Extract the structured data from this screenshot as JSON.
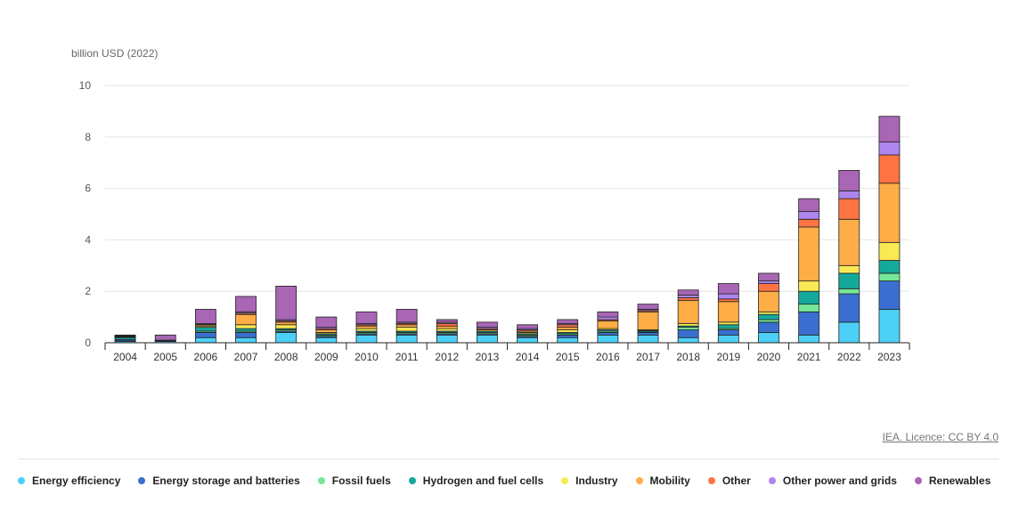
{
  "chart_data": {
    "type": "bar",
    "stacked": true,
    "unit": "billion USD (2022)",
    "ylim": [
      0,
      10
    ],
    "yticks": [
      0,
      2,
      4,
      6,
      8,
      10
    ],
    "grid": true,
    "legend_position": "bottom",
    "credit": "IEA. Licence: CC BY 4.0",
    "categories": [
      "2004",
      "2005",
      "2006",
      "2007",
      "2008",
      "2009",
      "2010",
      "2011",
      "2012",
      "2013",
      "2014",
      "2015",
      "2016",
      "2017",
      "2018",
      "2019",
      "2020",
      "2021",
      "2022",
      "2023"
    ],
    "series": [
      {
        "name": "Energy efficiency",
        "color": "#4dd0f7",
        "values": [
          0.05,
          0.05,
          0.2,
          0.2,
          0.4,
          0.2,
          0.3,
          0.3,
          0.3,
          0.3,
          0.2,
          0.2,
          0.3,
          0.3,
          0.2,
          0.3,
          0.4,
          0.3,
          0.8,
          1.3
        ]
      },
      {
        "name": "Energy storage and batteries",
        "color": "#3a6fd1",
        "values": [
          0.05,
          0.03,
          0.2,
          0.2,
          0.05,
          0.05,
          0.05,
          0.05,
          0.05,
          0.05,
          0.05,
          0.1,
          0.1,
          0.1,
          0.3,
          0.2,
          0.4,
          0.9,
          1.1,
          1.1
        ]
      },
      {
        "name": "Fossil fuels",
        "color": "#76e897",
        "values": [
          0.02,
          0.01,
          0.05,
          0.05,
          0.05,
          0.05,
          0.05,
          0.05,
          0.05,
          0.05,
          0.05,
          0.05,
          0.05,
          0.02,
          0.1,
          0.05,
          0.1,
          0.3,
          0.2,
          0.3
        ]
      },
      {
        "name": "Hydrogen and fuel cells",
        "color": "#15a99b",
        "values": [
          0.08,
          0.01,
          0.15,
          0.1,
          0.05,
          0.05,
          0.05,
          0.05,
          0.05,
          0.05,
          0.05,
          0.05,
          0.05,
          0.05,
          0.05,
          0.15,
          0.2,
          0.5,
          0.6,
          0.5
        ]
      },
      {
        "name": "Industry",
        "color": "#f9ea55",
        "values": [
          0.02,
          0.0,
          0.05,
          0.15,
          0.15,
          0.05,
          0.1,
          0.15,
          0.1,
          0.05,
          0.05,
          0.1,
          0.05,
          0.03,
          0.1,
          0.1,
          0.1,
          0.4,
          0.3,
          0.7
        ]
      },
      {
        "name": "Mobility",
        "color": "#ffad47",
        "values": [
          0.02,
          0.0,
          0.05,
          0.4,
          0.1,
          0.1,
          0.1,
          0.1,
          0.1,
          0.0,
          0.05,
          0.1,
          0.3,
          0.7,
          0.9,
          0.8,
          0.8,
          2.1,
          1.8,
          2.3
        ]
      },
      {
        "name": "Other",
        "color": "#ff7442",
        "values": [
          0.01,
          0.0,
          0.02,
          0.05,
          0.05,
          0.05,
          0.05,
          0.05,
          0.1,
          0.05,
          0.05,
          0.1,
          0.05,
          0.05,
          0.1,
          0.1,
          0.3,
          0.3,
          0.8,
          1.1
        ]
      },
      {
        "name": "Other power and grids",
        "color": "#ad86ef",
        "values": [
          0.02,
          0.0,
          0.02,
          0.05,
          0.05,
          0.05,
          0.05,
          0.05,
          0.05,
          0.05,
          0.05,
          0.05,
          0.1,
          0.05,
          0.1,
          0.2,
          0.1,
          0.3,
          0.3,
          0.5
        ]
      },
      {
        "name": "Renewables",
        "color": "#a866b4",
        "values": [
          0.03,
          0.2,
          0.56,
          0.6,
          1.3,
          0.4,
          0.45,
          0.5,
          0.1,
          0.2,
          0.15,
          0.15,
          0.2,
          0.2,
          0.2,
          0.4,
          0.3,
          0.5,
          0.8,
          1.0
        ]
      }
    ]
  }
}
